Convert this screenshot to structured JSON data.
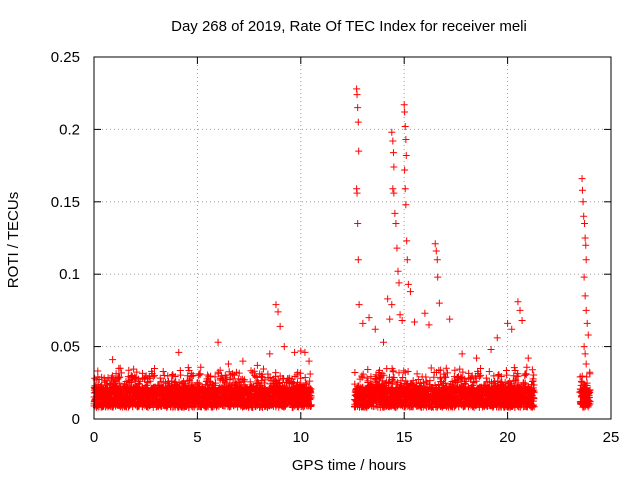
{
  "chart_data": {
    "type": "scatter",
    "title": "Day 268 of 2019, Rate Of TEC Index for receiver meli",
    "xlabel": "GPS time / hours",
    "ylabel": "ROTI / TECUs",
    "xlim": [
      0,
      25
    ],
    "ylim": [
      0,
      0.25
    ],
    "xticks": [
      0,
      5,
      10,
      15,
      20,
      25
    ],
    "xtick_labels": [
      "0",
      "5",
      "10",
      "15",
      "20",
      "25"
    ],
    "yticks": [
      0,
      0.05,
      0.1,
      0.15,
      0.2,
      0.25
    ],
    "ytick_labels": [
      "0",
      "0.05",
      "0.1",
      "0.15",
      "0.2",
      "0.25"
    ],
    "grid": true,
    "marker": "+",
    "color": "#ff0000",
    "series": [
      {
        "name": "ROTI",
        "coverage_hours": [
          [
            0,
            10.5
          ],
          [
            12.6,
            21.3
          ],
          [
            23.5,
            24
          ]
        ],
        "points": [
          [
            0.1,
            0.018
          ],
          [
            0.2,
            0.024
          ],
          [
            0.3,
            0.014
          ],
          [
            0.5,
            0.012
          ],
          [
            0.9,
            0.041
          ],
          [
            1.2,
            0.035
          ],
          [
            1.8,
            0.03
          ],
          [
            2.6,
            0.028
          ],
          [
            3.4,
            0.03
          ],
          [
            4.1,
            0.046
          ],
          [
            4.8,
            0.03
          ],
          [
            5.5,
            0.026
          ],
          [
            6.0,
            0.053
          ],
          [
            6.5,
            0.038
          ],
          [
            7.2,
            0.04
          ],
          [
            7.9,
            0.037
          ],
          [
            8.5,
            0.045
          ],
          [
            8.8,
            0.079
          ],
          [
            8.9,
            0.074
          ],
          [
            9.0,
            0.064
          ],
          [
            9.2,
            0.05
          ],
          [
            9.7,
            0.046
          ],
          [
            10.0,
            0.047
          ],
          [
            10.2,
            0.046
          ],
          [
            10.4,
            0.04
          ],
          [
            12.7,
            0.228
          ],
          [
            12.72,
            0.224
          ],
          [
            12.75,
            0.215
          ],
          [
            12.78,
            0.205
          ],
          [
            12.8,
            0.185
          ],
          [
            12.7,
            0.159
          ],
          [
            12.72,
            0.156
          ],
          [
            12.75,
            0.135
          ],
          [
            12.78,
            0.11
          ],
          [
            12.82,
            0.079
          ],
          [
            13.0,
            0.066
          ],
          [
            13.3,
            0.07
          ],
          [
            13.6,
            0.062
          ],
          [
            14.0,
            0.053
          ],
          [
            14.2,
            0.083
          ],
          [
            14.3,
            0.069
          ],
          [
            14.4,
            0.079
          ],
          [
            14.4,
            0.198
          ],
          [
            14.45,
            0.192
          ],
          [
            14.48,
            0.184
          ],
          [
            14.5,
            0.174
          ],
          [
            14.45,
            0.159
          ],
          [
            14.5,
            0.156
          ],
          [
            14.55,
            0.142
          ],
          [
            14.6,
            0.135
          ],
          [
            14.65,
            0.118
          ],
          [
            14.7,
            0.102
          ],
          [
            14.75,
            0.094
          ],
          [
            14.8,
            0.072
          ],
          [
            14.9,
            0.068
          ],
          [
            15.0,
            0.217
          ],
          [
            15.02,
            0.212
          ],
          [
            15.05,
            0.202
          ],
          [
            15.08,
            0.193
          ],
          [
            15.1,
            0.182
          ],
          [
            15.02,
            0.172
          ],
          [
            15.05,
            0.159
          ],
          [
            15.08,
            0.148
          ],
          [
            15.12,
            0.123
          ],
          [
            15.15,
            0.11
          ],
          [
            15.2,
            0.093
          ],
          [
            15.3,
            0.088
          ],
          [
            15.5,
            0.067
          ],
          [
            16.0,
            0.073
          ],
          [
            16.2,
            0.065
          ],
          [
            16.5,
            0.121
          ],
          [
            16.55,
            0.116
          ],
          [
            16.6,
            0.11
          ],
          [
            16.62,
            0.098
          ],
          [
            16.7,
            0.08
          ],
          [
            17.2,
            0.069
          ],
          [
            17.8,
            0.045
          ],
          [
            18.5,
            0.042
          ],
          [
            19.2,
            0.048
          ],
          [
            19.5,
            0.056
          ],
          [
            20.0,
            0.066
          ],
          [
            20.2,
            0.062
          ],
          [
            20.5,
            0.081
          ],
          [
            20.6,
            0.075
          ],
          [
            20.7,
            0.068
          ],
          [
            21.0,
            0.042
          ],
          [
            21.2,
            0.034
          ],
          [
            23.6,
            0.166
          ],
          [
            23.62,
            0.158
          ],
          [
            23.65,
            0.15
          ],
          [
            23.68,
            0.14
          ],
          [
            23.72,
            0.135
          ],
          [
            23.75,
            0.125
          ],
          [
            23.78,
            0.12
          ],
          [
            23.8,
            0.11
          ],
          [
            23.7,
            0.098
          ],
          [
            23.75,
            0.085
          ],
          [
            23.8,
            0.075
          ],
          [
            23.85,
            0.066
          ],
          [
            23.9,
            0.058
          ],
          [
            23.7,
            0.05
          ],
          [
            23.75,
            0.045
          ],
          [
            23.8,
            0.038
          ]
        ]
      }
    ]
  }
}
